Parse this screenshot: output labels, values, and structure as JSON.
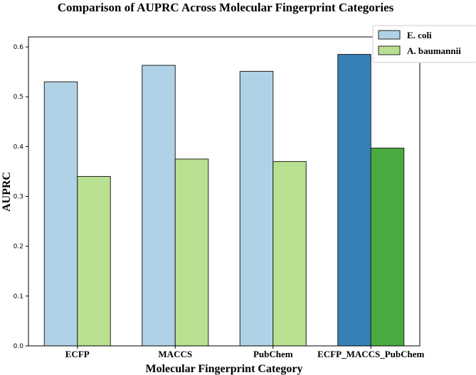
{
  "chart_data": {
    "type": "bar",
    "title": "Comparison of AUPRC Across Molecular Fingerprint Categories",
    "xlabel": "Molecular Fingerprint Category",
    "ylabel": "AUPRC",
    "categories": [
      "ECFP",
      "MACCS",
      "PubChem",
      "ECFP_MACCS_PubChem"
    ],
    "series": [
      {
        "name": "E. coli",
        "values": [
          0.53,
          0.563,
          0.551,
          0.585
        ],
        "color": "#b0d2e6",
        "highlight_color": "#3680b8"
      },
      {
        "name": "A. baumannii",
        "values": [
          0.34,
          0.375,
          0.37,
          0.397
        ],
        "color": "#b8e090",
        "highlight_color": "#4aaa42"
      }
    ],
    "highlight_category": "ECFP_MACCS_PubChem",
    "ylim": [
      0,
      0.62
    ],
    "yticks": [
      "0.0",
      "0.1",
      "0.2",
      "0.3",
      "0.4",
      "0.5",
      "0.6"
    ],
    "grid": false,
    "legend_position": "top-right"
  }
}
